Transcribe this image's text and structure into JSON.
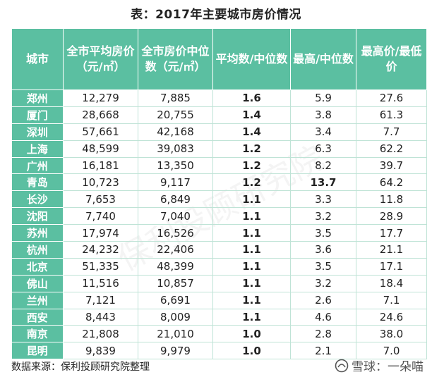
{
  "title": "表：2017年主要城市房价情况",
  "headers": [
    "城市",
    "全市平均房价（元/㎡）",
    "全市房价中位数（元/㎡）",
    "平均数/中位数",
    "最高/中位数",
    "最高价/最低价"
  ],
  "rows": [
    {
      "city": "郑州",
      "avg": "12,279",
      "median": "7,885",
      "ratio_avg_median": "1.6",
      "ratio_max_median": "5.9",
      "ratio_max_min": "27.6"
    },
    {
      "city": "厦门",
      "avg": "28,668",
      "median": "20,755",
      "ratio_avg_median": "1.4",
      "ratio_max_median": "3.8",
      "ratio_max_min": "61.3"
    },
    {
      "city": "深圳",
      "avg": "57,661",
      "median": "42,168",
      "ratio_avg_median": "1.4",
      "ratio_max_median": "3.4",
      "ratio_max_min": "7.7"
    },
    {
      "city": "上海",
      "avg": "48,599",
      "median": "39,083",
      "ratio_avg_median": "1.2",
      "ratio_max_median": "6.3",
      "ratio_max_min": "62.2"
    },
    {
      "city": "广州",
      "avg": "16,181",
      "median": "13,350",
      "ratio_avg_median": "1.2",
      "ratio_max_median": "8.2",
      "ratio_max_min": "39.7"
    },
    {
      "city": "青岛",
      "avg": "10,723",
      "median": "9,117",
      "ratio_avg_median": "1.2",
      "ratio_max_median": "13.7",
      "ratio_max_min": "64.2"
    },
    {
      "city": "长沙",
      "avg": "7,653",
      "median": "6,849",
      "ratio_avg_median": "1.1",
      "ratio_max_median": "3.3",
      "ratio_max_min": "11.8"
    },
    {
      "city": "沈阳",
      "avg": "7,740",
      "median": "7,040",
      "ratio_avg_median": "1.1",
      "ratio_max_median": "3.2",
      "ratio_max_min": "28.9"
    },
    {
      "city": "苏州",
      "avg": "17,974",
      "median": "16,526",
      "ratio_avg_median": "1.1",
      "ratio_max_median": "3.5",
      "ratio_max_min": "17.7"
    },
    {
      "city": "杭州",
      "avg": "24,232",
      "median": "22,406",
      "ratio_avg_median": "1.1",
      "ratio_max_median": "3.6",
      "ratio_max_min": "21.1"
    },
    {
      "city": "北京",
      "avg": "51,335",
      "median": "48,399",
      "ratio_avg_median": "1.1",
      "ratio_max_median": "3.5",
      "ratio_max_min": "17.1"
    },
    {
      "city": "佛山",
      "avg": "11,516",
      "median": "10,857",
      "ratio_avg_median": "1.1",
      "ratio_max_median": "3.2",
      "ratio_max_min": "18.4"
    },
    {
      "city": "兰州",
      "avg": "7,121",
      "median": "6,691",
      "ratio_avg_median": "1.1",
      "ratio_max_median": "2.6",
      "ratio_max_min": "7.1"
    },
    {
      "city": "西安",
      "avg": "8,443",
      "median": "8,009",
      "ratio_avg_median": "1.1",
      "ratio_max_median": "4.6",
      "ratio_max_min": "24.6"
    },
    {
      "city": "南京",
      "avg": "21,808",
      "median": "21,010",
      "ratio_avg_median": "1.0",
      "ratio_max_median": "2.8",
      "ratio_max_min": "38.0"
    },
    {
      "city": "昆明",
      "avg": "9,839",
      "median": "9,979",
      "ratio_avg_median": "1.0",
      "ratio_max_median": "2.1",
      "ratio_max_min": "7.0"
    }
  ],
  "highlight_row_index": 5,
  "source": "数据来源：保利投顾研究院整理",
  "watermark_center": "保利投顾研究院",
  "watermark_corner": "雪球：一朵喵",
  "colors": {
    "header_bg": "#5bbfa1",
    "header_text": "#ffffff",
    "grid": "#bfe3d6"
  },
  "icons": {
    "watermark_logo": "snowball-logo-icon"
  }
}
